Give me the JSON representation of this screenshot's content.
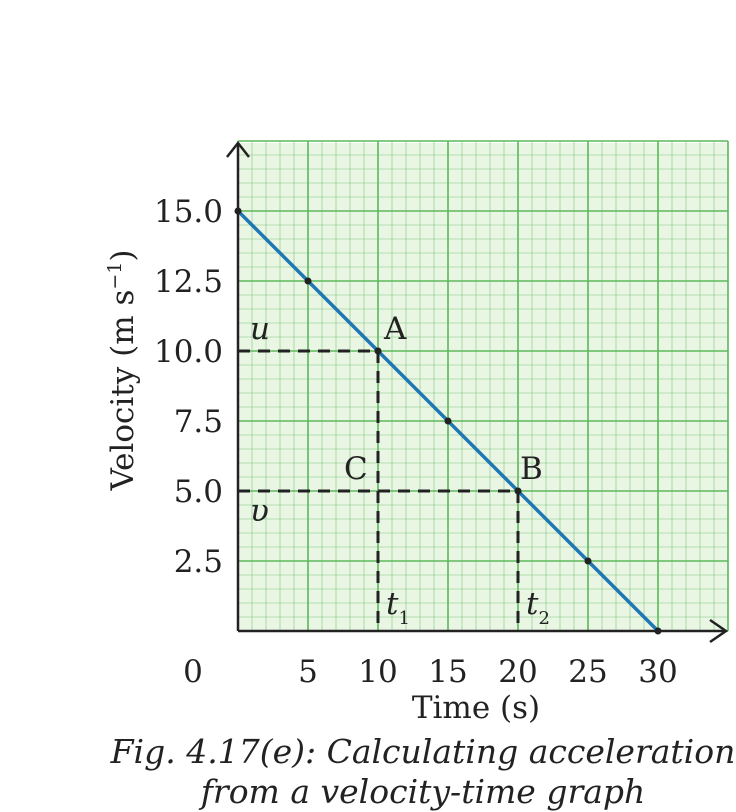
{
  "chart_data": {
    "type": "line",
    "x": [
      0,
      5,
      10,
      15,
      20,
      25,
      30
    ],
    "series": [
      {
        "values": [
          15.0,
          12.5,
          10.0,
          7.5,
          5.0,
          2.5,
          0
        ]
      }
    ],
    "xlabel": "Time (s)",
    "ylabel": "Velocity (m s",
    "ylabel_sup": "−1",
    "ylabel_close": ")",
    "x_ticks": [
      "5",
      "10",
      "15",
      "20",
      "25",
      "30"
    ],
    "y_ticks": [
      "2.5",
      "5.0",
      "7.5",
      "10.0",
      "12.5",
      "15.0"
    ],
    "origin_label": "0",
    "xlim": [
      0,
      35
    ],
    "ylim": [
      0,
      17.5
    ],
    "grid": true,
    "colors": {
      "line": "#1f77b4",
      "grid": "#5cb85c",
      "grid_fill": "#eaf6e4",
      "dash": "#222222"
    },
    "annotations": [
      {
        "label": "A",
        "x": 10,
        "y": 10
      },
      {
        "label": "B",
        "x": 20,
        "y": 5
      },
      {
        "label": "C",
        "x": 10,
        "y": 5
      }
    ],
    "variables": {
      "u": "u",
      "v": "υ",
      "t1": "t",
      "t1_sub": "1",
      "t2": "t",
      "t2_sub": "2"
    }
  },
  "caption": {
    "line1": "Fig. 4.17(e): Calculating acceleration",
    "line2": "from a velocity-time graph"
  }
}
